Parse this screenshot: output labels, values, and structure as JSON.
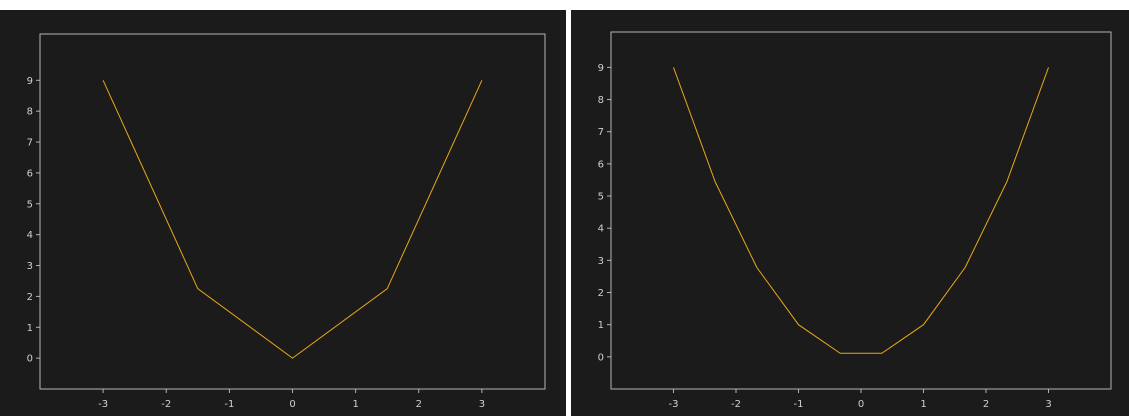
{
  "chart_data": [
    {
      "type": "line",
      "title": "",
      "xlabel": "",
      "ylabel": "",
      "xlim": [
        -4,
        4
      ],
      "ylim": [
        -1,
        10.5
      ],
      "x_ticks": [
        "-3",
        "-2",
        "-1",
        "0",
        "1",
        "2",
        "3"
      ],
      "y_ticks": [
        "0",
        "1",
        "2",
        "3",
        "4",
        "5",
        "6",
        "7",
        "8",
        "9"
      ],
      "grid": false,
      "line_color": "#e6a817",
      "series": [
        {
          "x": [
            -3,
            -1.5,
            0,
            1.5,
            3
          ],
          "y": [
            9,
            2.25,
            0,
            2.25,
            9
          ]
        }
      ]
    },
    {
      "type": "line",
      "title": "",
      "xlabel": "",
      "ylabel": "",
      "xlim": [
        -4,
        4
      ],
      "ylim": [
        -1,
        10.1
      ],
      "x_ticks": [
        "-3",
        "-2",
        "-1",
        "0",
        "1",
        "2",
        "3"
      ],
      "y_ticks": [
        "0",
        "1",
        "2",
        "3",
        "4",
        "5",
        "6",
        "7",
        "8",
        "9"
      ],
      "grid": false,
      "line_color": "#e6a817",
      "series": [
        {
          "x": [
            -3,
            -2.333,
            -1.667,
            -1,
            -0.333,
            0.333,
            1,
            1.667,
            2.333,
            3
          ],
          "y": [
            9,
            5.44,
            2.78,
            1,
            0.11,
            0.11,
            1,
            2.78,
            5.44,
            9
          ]
        }
      ]
    }
  ]
}
